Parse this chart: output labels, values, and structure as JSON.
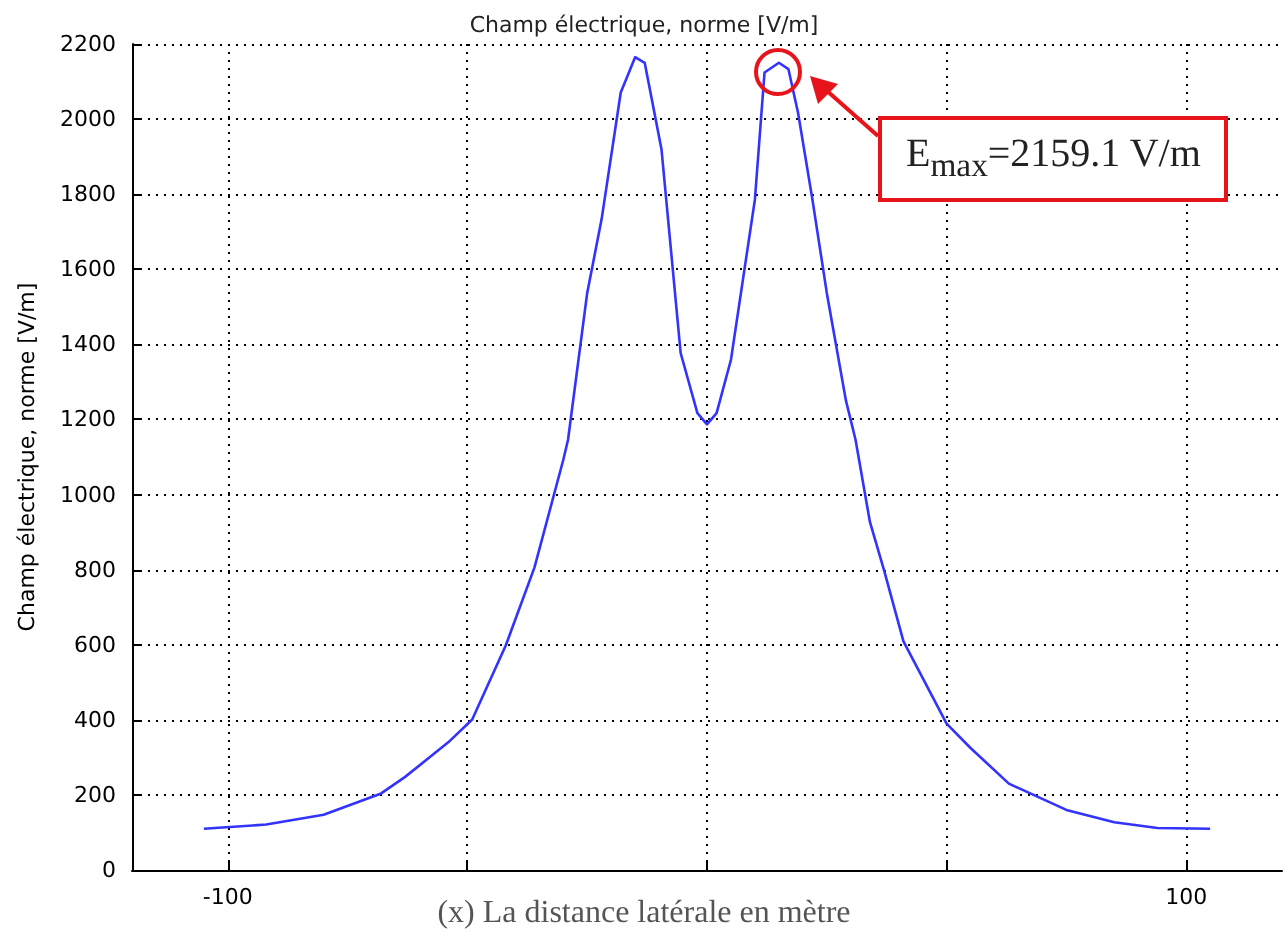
{
  "chart_data": {
    "type": "line",
    "title": "Champ électrique, norme [V/m]",
    "xlabel": "(x) La distance latérale en mètre",
    "ylabel": "Champ électrique, norme [V/m]",
    "annotations": [
      "E$_{max}$=2159.1 V/m"
    ],
    "series": [
      {
        "color": "#3333ff",
        "x": [
          -105,
          -92,
          -80,
          -68,
          -63,
          -54,
          -49,
          -42,
          -36,
          -30,
          -29,
          -25,
          -22,
          -18,
          -15,
          -13,
          -9.5,
          -5.5,
          -2,
          0,
          2,
          5,
          10,
          12,
          15,
          17,
          19,
          22,
          25,
          29,
          31,
          34,
          37,
          41,
          50,
          55,
          63,
          75,
          85,
          94,
          105
        ],
        "values": [
          110,
          121,
          147,
          204,
          248,
          340,
          401,
          598,
          806,
          1092,
          1146,
          1537,
          1733,
          2071,
          2165,
          2150,
          1920,
          1377,
          1217,
          1187,
          1217,
          1359,
          1786,
          2124,
          2150,
          2133,
          2017,
          1786,
          1537,
          1250,
          1146,
          927,
          796,
          609,
          390,
          325,
          230,
          160,
          127,
          112,
          110
        ]
      }
    ],
    "xlim": [
      -120,
      120
    ],
    "xticks": [
      {
        "value": -100,
        "label": "-100"
      },
      {
        "value": -50,
        "label": null
      },
      {
        "value": 0,
        "label": null
      },
      {
        "value": 50,
        "label": null
      },
      {
        "value": 100,
        "label": "100"
      }
    ],
    "ylim": [
      0,
      2200
    ],
    "yticks": [
      0,
      200,
      400,
      600,
      800,
      1000,
      1200,
      1400,
      1600,
      1800,
      2000,
      2200
    ],
    "grid": true,
    "marker": "none",
    "line_style": "solid"
  }
}
